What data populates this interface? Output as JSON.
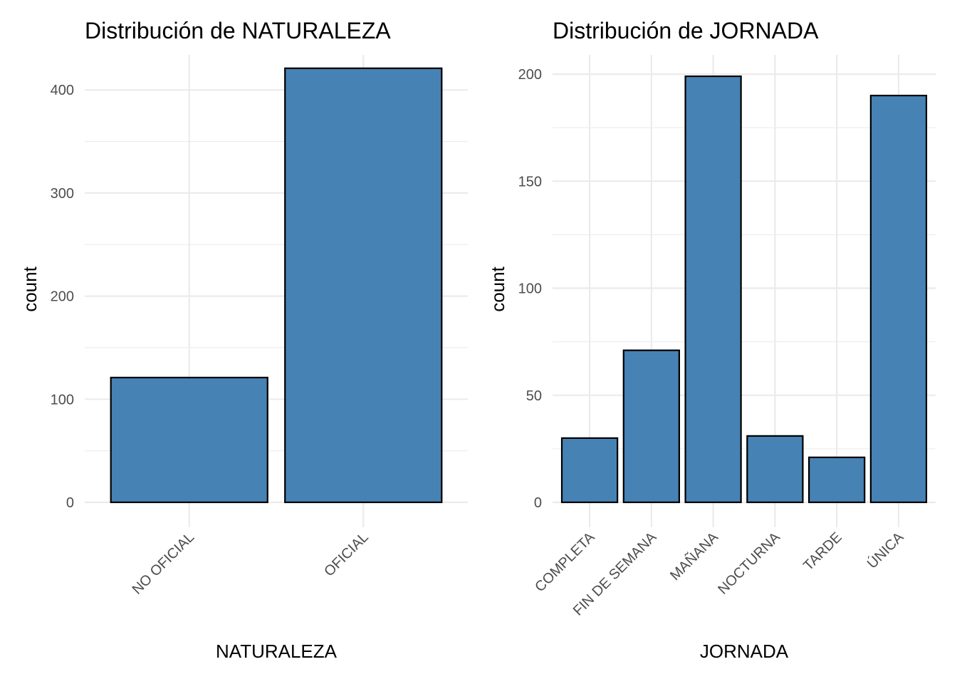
{
  "colors": {
    "bar_fill": "#4682b4",
    "bar_stroke": "#000000",
    "grid": "#ebebeb"
  },
  "chart_data": [
    {
      "type": "bar",
      "title": "Distribución de NATURALEZA",
      "xlabel": "NATURALEZA",
      "ylabel": "count",
      "categories": [
        "NO OFICIAL",
        "OFICIAL"
      ],
      "values": [
        121,
        421
      ],
      "ylim": [
        0,
        434
      ],
      "yticks": [
        0,
        100,
        200,
        300,
        400
      ],
      "ytick_labels": [
        "0",
        "100",
        "200",
        "300",
        "400"
      ],
      "grid": true,
      "legend": "none"
    },
    {
      "type": "bar",
      "title": "Distribución de JORNADA",
      "xlabel": "JORNADA",
      "ylabel": "count",
      "categories": [
        "COMPLETA",
        "FIN DE SEMANA",
        "MAÑANA",
        "NOCTURNA",
        "TARDE",
        "ÚNICA"
      ],
      "values": [
        30,
        71,
        199,
        31,
        21,
        190
      ],
      "ylim": [
        0,
        209
      ],
      "yticks": [
        0,
        50,
        100,
        150,
        200
      ],
      "ytick_labels": [
        "0",
        "50",
        "100",
        "150",
        "200"
      ],
      "grid": true,
      "legend": "none"
    }
  ]
}
